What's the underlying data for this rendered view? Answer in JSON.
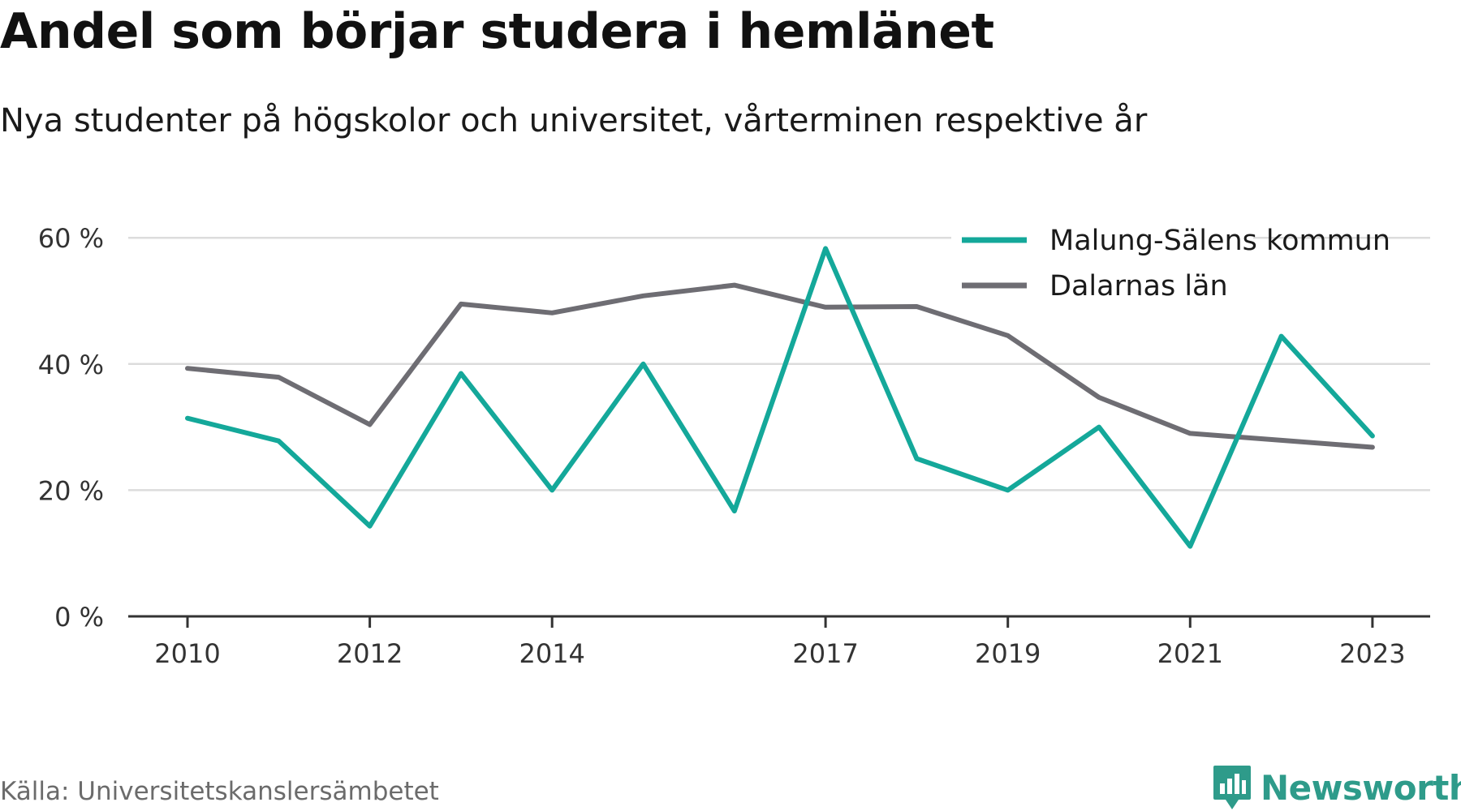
{
  "title": "Andel som börjar studera i hemlänet",
  "subtitle": "Nya studenter på högskolor och universitet, vårterminen respektive år",
  "source": "Källa: Universitetskanslersämbetet",
  "brand": {
    "name": "Newsworthy",
    "icon": "newsworthy-logo-icon",
    "color": "#2e9b8a"
  },
  "colors": {
    "malung": "#14a89a",
    "dalarna": "#6e6d73",
    "grid": "#dcdcdc",
    "axis": "#333333"
  },
  "chart_data": {
    "type": "line",
    "x": [
      2010,
      2011,
      2012,
      2013,
      2014,
      2015,
      2016,
      2017,
      2018,
      2019,
      2020,
      2021,
      2022,
      2023
    ],
    "x_tick_labels": [
      "2010",
      "2012",
      "2014",
      "2017",
      "2019",
      "2021",
      "2023"
    ],
    "y_tick_labels": [
      "0 %",
      "20 %",
      "40 %",
      "60 %"
    ],
    "ylim": [
      0,
      60
    ],
    "y_unit": "%",
    "grid": true,
    "legend_position": "top-right",
    "series": [
      {
        "name": "Malung-Sälens kommun",
        "color": "#14a89a",
        "values": [
          31.4,
          27.8,
          14.3,
          38.5,
          20.0,
          40.0,
          16.7,
          58.3,
          25.0,
          20.0,
          30.0,
          11.1,
          44.4,
          28.6
        ]
      },
      {
        "name": "Dalarnas län",
        "color": "#6e6d73",
        "values": [
          39.3,
          37.9,
          30.4,
          49.5,
          48.1,
          50.8,
          52.5,
          49.0,
          49.1,
          44.5,
          34.7,
          29.0,
          27.9,
          26.8
        ]
      }
    ]
  }
}
